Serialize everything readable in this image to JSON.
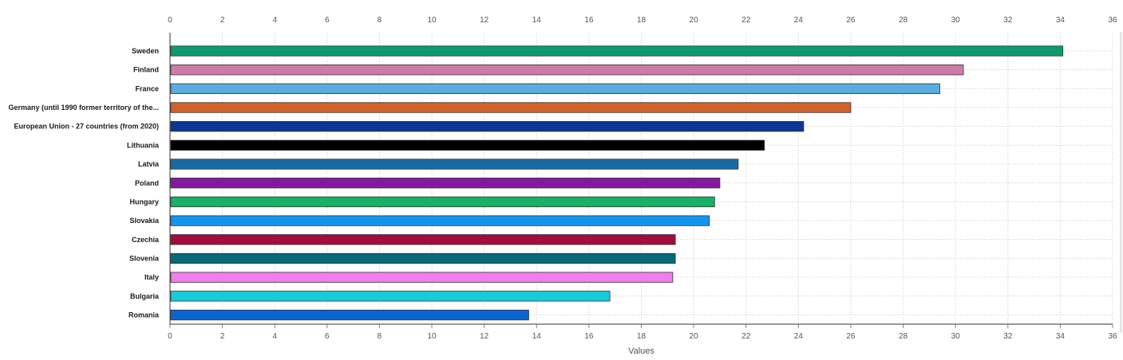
{
  "chart_data": {
    "type": "bar",
    "orientation": "horizontal",
    "categories": [
      "Sweden",
      "Finland",
      "France",
      "Germany (until 1990 former territory of the...",
      "European Union - 27 countries (from 2020)",
      "Lithuania",
      "Latvia",
      "Poland",
      "Hungary",
      "Slovakia",
      "Czechia",
      "Slovenia",
      "Italy",
      "Bulgaria",
      "Romania"
    ],
    "values": [
      34.1,
      30.3,
      29.4,
      26.0,
      24.2,
      22.7,
      21.7,
      21.0,
      20.8,
      20.6,
      19.3,
      19.3,
      19.2,
      16.8,
      13.7
    ],
    "colors": [
      "#0e9a6e",
      "#cf7ba9",
      "#5aade0",
      "#d2622a",
      "#0a3791",
      "#000000",
      "#1a6aa6",
      "#8419a0",
      "#17b064",
      "#1493ef",
      "#a30c3c",
      "#086977",
      "#f07ef0",
      "#19cada",
      "#0a64d2"
    ],
    "xlim": [
      0,
      36
    ],
    "xticks": [
      0,
      2,
      4,
      6,
      8,
      10,
      12,
      14,
      16,
      18,
      20,
      22,
      24,
      26,
      28,
      30,
      32,
      34,
      36
    ],
    "xlabel": "Values",
    "title": "",
    "grid": true,
    "legend": "none"
  }
}
